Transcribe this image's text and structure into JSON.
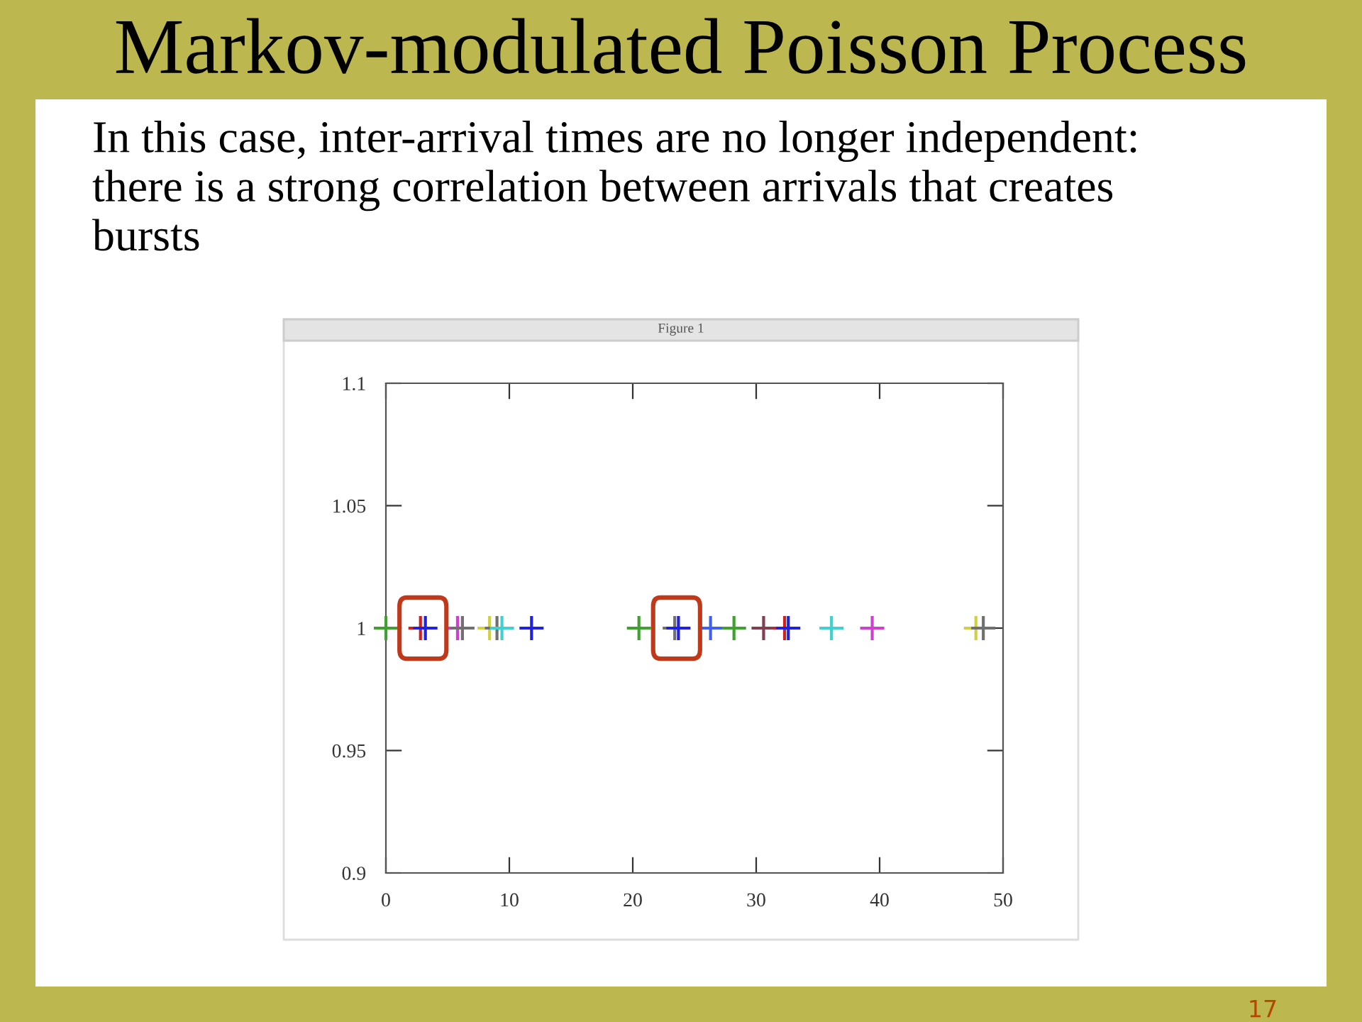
{
  "chart_data": {
    "type": "scatter",
    "title": "Markov-modulated Poisson Process",
    "subtitle": "In this case, inter-arrival times are no longer independent:\nthere is a strong correlation between arrivals that creates\nbursts",
    "annotations": [
      "Figure 1",
      "17"
    ],
    "x": [
      0.0,
      2.8,
      3.2,
      5.8,
      6.2,
      8.4,
      9.0,
      9.4,
      11.8,
      20.5,
      23.4,
      23.7,
      26.3,
      28.2,
      30.6,
      32.3,
      32.6,
      36.1,
      39.4,
      47.8,
      48.4
    ],
    "series": [
      {
        "values": [
          1,
          1,
          1,
          1,
          1,
          1,
          1,
          1,
          1,
          1,
          1,
          1,
          1,
          1,
          1,
          1,
          1,
          1,
          1,
          1,
          1
        ],
        "colors": [
          "#40a030",
          "#d02020",
          "#2020e0",
          "#d040d0",
          "#707070",
          "#d0d040",
          "#707070",
          "#40d0d0",
          "#2020e0",
          "#40a030",
          "#707070",
          "#2020e0",
          "#4060f0",
          "#40a030",
          "#804050",
          "#d02020",
          "#2020e0",
          "#40d0d0",
          "#d040d0",
          "#d0d040",
          "#707070"
        ]
      }
    ],
    "marker": "cross",
    "xlim": [
      0,
      50
    ],
    "xticks": [
      0,
      10,
      20,
      30,
      40,
      50
    ],
    "ylim": [
      0.9,
      1.1
    ],
    "yticks": [
      {
        "value": 0.9,
        "label": "0.9"
      },
      {
        "value": 0.95,
        "label": "0.95"
      },
      {
        "value": 1,
        "label": "1"
      },
      {
        "value": 1.05,
        "label": "1.05"
      },
      {
        "value": 1.1,
        "label": "1.1"
      }
    ],
    "grid": false,
    "legend": false
  }
}
